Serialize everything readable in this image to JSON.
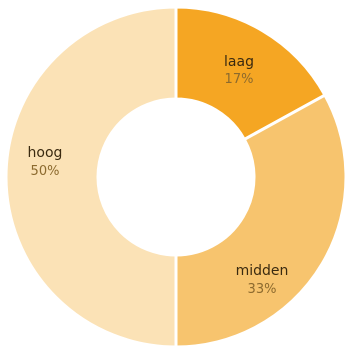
{
  "chart_data": {
    "type": "pie",
    "donut": true,
    "title": "",
    "slices": [
      {
        "name": "laag",
        "label": "17%",
        "value": 17,
        "color": "#f5a623"
      },
      {
        "name": "midden",
        "label": "33%",
        "value": 33,
        "color": "#f7c46e"
      },
      {
        "name": "hoog",
        "label": "50%",
        "value": 50,
        "color": "#fbe2b6"
      }
    ]
  }
}
